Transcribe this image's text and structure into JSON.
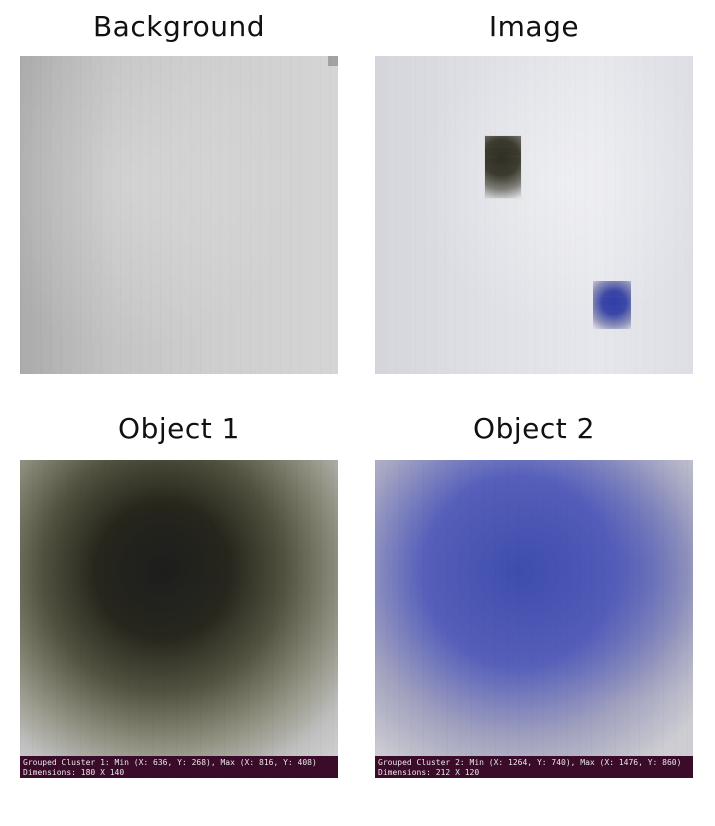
{
  "panels": {
    "background": {
      "title": "Background"
    },
    "image": {
      "title": "Image"
    },
    "object1": {
      "title": "Object 1",
      "caption_line1": "Grouped Cluster 1: Min (X: 636, Y: 268), Max (X: 816, Y: 408)",
      "caption_line2": "Dimensions: 180 X 140"
    },
    "object2": {
      "title": "Object 2",
      "caption_line1": "Grouped Cluster 2: Min (X: 1264, Y: 740), Max (X: 1476, Y: 860)",
      "caption_line2": "Dimensions: 212 X 120"
    }
  },
  "colors": {
    "caption_bg": "#3b0b2a",
    "caption_text": "#e8e8e8",
    "title_text": "#111111",
    "object2_blue": "#3c47a7",
    "object1_dark": "#2f2f25"
  }
}
